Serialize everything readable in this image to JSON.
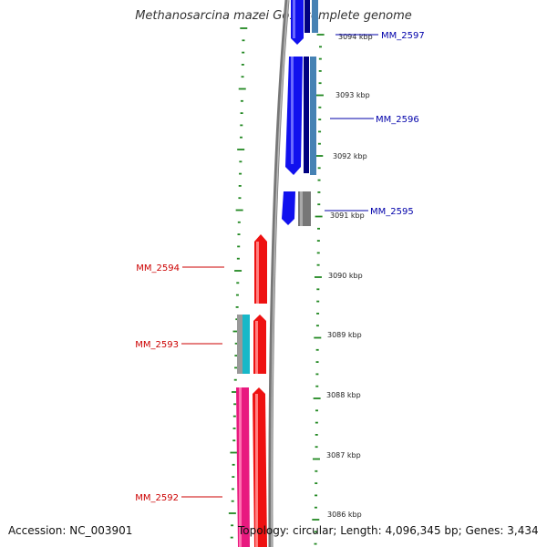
{
  "title": "Methanosarcina mazei Go1, complete genome",
  "accession": "Accession: NC_003901",
  "topology": "Topology: circular; Length: 4,096,345 bp; Genes: 3,434",
  "colors": {
    "forward_strand": "#ee1111",
    "reverse_strand": "#1111ee",
    "forward_label": "#cc0000",
    "reverse_label": "#0000aa",
    "pink_feature": "#e8197f",
    "cyan_feature": "#18b8c8",
    "gray_feature": "#888888",
    "steelblue_feature": "#4682b4",
    "navy_feature": "#000080",
    "tick_color": "#228822",
    "backbone": "#888888"
  },
  "scale_labels": [
    "3094 kbp",
    "3093 kbp",
    "3092 kbp",
    "3091 kbp",
    "3090 kbp",
    "3089 kbp",
    "3088 kbp",
    "3087 kbp",
    "3086 kbp"
  ],
  "genes": [
    {
      "label": "MM_2597",
      "strand": "reverse"
    },
    {
      "label": "MM_2596",
      "strand": "reverse"
    },
    {
      "label": "MM_2595",
      "strand": "reverse"
    },
    {
      "label": "MM_2594",
      "strand": "forward"
    },
    {
      "label": "MM_2593",
      "strand": "forward"
    },
    {
      "label": "MM_2592",
      "strand": "forward"
    }
  ]
}
